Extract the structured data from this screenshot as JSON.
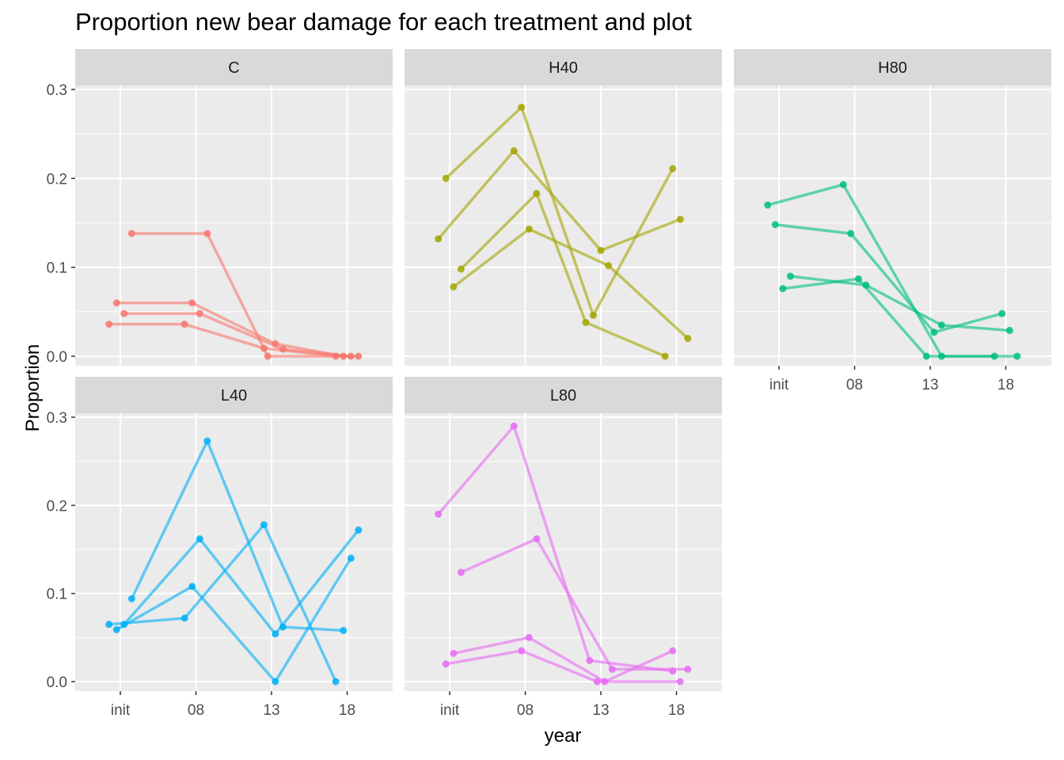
{
  "chart_data": {
    "type": "line",
    "title": "Proportion new bear damage for each treatment and plot",
    "xlabel": "year",
    "ylabel": "Proportion",
    "x_categories": [
      "init",
      "08",
      "13",
      "18"
    ],
    "y_ticks": [
      "0.0",
      "0.1",
      "0.2",
      "0.3"
    ],
    "ylim": [
      -0.015,
      0.3
    ],
    "grid": true,
    "legend": "none",
    "facets": [
      {
        "name": "C",
        "color": "#F8766D",
        "series": [
          {
            "x": [
              -0.15,
              0.85,
              1.9,
              2.85
            ],
            "y": [
              0.036,
              0.036,
              0.009,
              0.0
            ]
          },
          {
            "x": [
              -0.05,
              0.95,
              2.05,
              2.95
            ],
            "y": [
              0.06,
              0.06,
              0.014,
              0.0
            ]
          },
          {
            "x": [
              0.05,
              1.05,
              2.15,
              3.05
            ],
            "y": [
              0.048,
              0.048,
              0.008,
              0.0
            ]
          },
          {
            "x": [
              0.15,
              1.15,
              1.95,
              3.15
            ],
            "y": [
              0.138,
              0.138,
              0.0,
              0.0
            ]
          }
        ]
      },
      {
        "name": "H40",
        "color": "#A3A500",
        "series": [
          {
            "x": [
              -0.15,
              0.85,
              2.0,
              3.05
            ],
            "y": [
              0.132,
              0.231,
              0.119,
              0.154
            ]
          },
          {
            "x": [
              -0.05,
              0.95,
              1.9,
              2.95
            ],
            "y": [
              0.2,
              0.28,
              0.046,
              0.211
            ]
          },
          {
            "x": [
              0.05,
              1.05,
              2.1,
              3.15
            ],
            "y": [
              0.078,
              0.143,
              0.102,
              0.02
            ]
          },
          {
            "x": [
              0.15,
              1.15,
              1.8,
              2.85
            ],
            "y": [
              0.098,
              0.183,
              0.038,
              0.0
            ]
          }
        ]
      },
      {
        "name": "H80",
        "color": "#00BF7D",
        "series": [
          {
            "x": [
              -0.15,
              0.85,
              2.15,
              3.15
            ],
            "y": [
              0.17,
              0.193,
              0.0,
              0.0
            ]
          },
          {
            "x": [
              -0.05,
              0.95,
              2.05,
              2.95
            ],
            "y": [
              0.148,
              0.138,
              0.027,
              0.048
            ]
          },
          {
            "x": [
              0.05,
              1.05,
              1.95,
              2.85
            ],
            "y": [
              0.076,
              0.087,
              0.0,
              0.0
            ]
          },
          {
            "x": [
              0.15,
              1.15,
              2.15,
              3.05
            ],
            "y": [
              0.09,
              0.08,
              0.035,
              0.029
            ]
          }
        ]
      },
      {
        "name": "L40",
        "color": "#00B0F6",
        "series": [
          {
            "x": [
              -0.15,
              0.85,
              1.9,
              2.85
            ],
            "y": [
              0.065,
              0.072,
              0.178,
              0.0
            ]
          },
          {
            "x": [
              -0.05,
              0.95,
              2.05,
              3.05
            ],
            "y": [
              0.059,
              0.108,
              0.0,
              0.14
            ]
          },
          {
            "x": [
              0.05,
              1.05,
              2.05,
              3.15
            ],
            "y": [
              0.065,
              0.162,
              0.054,
              0.172
            ]
          },
          {
            "x": [
              0.15,
              1.15,
              2.15,
              2.95
            ],
            "y": [
              0.094,
              0.273,
              0.062,
              0.058
            ]
          }
        ]
      },
      {
        "name": "L80",
        "color": "#E76BF3",
        "series": [
          {
            "x": [
              -0.15,
              0.85,
              1.85,
              2.95
            ],
            "y": [
              0.19,
              0.29,
              0.024,
              0.012
            ]
          },
          {
            "x": [
              -0.05,
              0.95,
              1.95,
              3.05
            ],
            "y": [
              0.02,
              0.035,
              0.0,
              0.0
            ]
          },
          {
            "x": [
              0.05,
              1.05,
              2.05,
              2.95
            ],
            "y": [
              0.032,
              0.05,
              0.0,
              0.035
            ]
          },
          {
            "x": [
              0.15,
              1.15,
              2.15,
              3.15
            ],
            "y": [
              0.124,
              0.162,
              0.014,
              0.014
            ]
          }
        ]
      }
    ]
  }
}
